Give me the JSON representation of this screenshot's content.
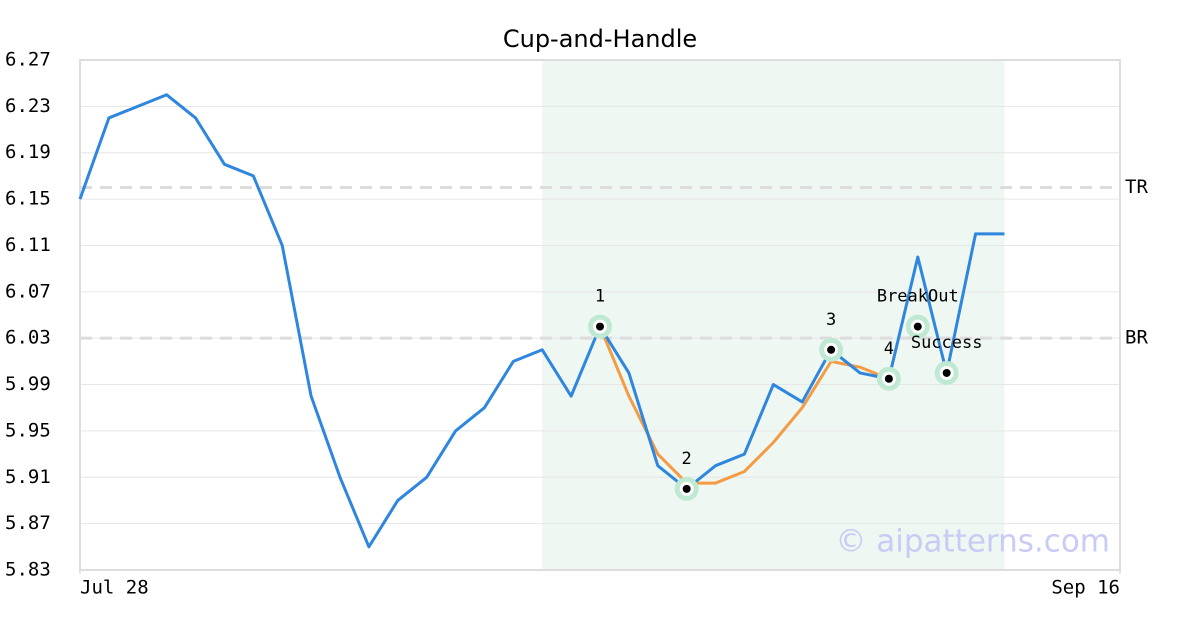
{
  "chart_data": {
    "type": "line",
    "title": "Cup-and-Handle",
    "x": [
      0,
      1,
      2,
      3,
      4,
      5,
      6,
      7,
      8,
      9,
      10,
      11,
      12,
      13,
      14,
      15,
      16,
      17,
      18,
      19,
      20,
      21,
      22,
      23,
      24,
      25,
      26,
      27,
      28,
      29,
      30,
      31,
      32
    ],
    "xlim": [
      0,
      36
    ],
    "xticks": [
      {
        "value": 0,
        "label": "Jul 28"
      },
      {
        "value": 36,
        "label": "Sep 16"
      }
    ],
    "ylim": [
      5.83,
      6.27
    ],
    "yticks": [
      5.83,
      5.87,
      5.91,
      5.95,
      5.99,
      6.03,
      6.07,
      6.11,
      6.15,
      6.19,
      6.23,
      6.27
    ],
    "grid": true,
    "series": [
      {
        "color": "#2e86de",
        "values": [
          6.15,
          6.22,
          6.23,
          6.24,
          6.22,
          6.18,
          6.17,
          6.11,
          5.98,
          5.91,
          5.85,
          5.89,
          5.91,
          5.95,
          5.97,
          6.01,
          6.02,
          5.98,
          6.04,
          6.0,
          5.92,
          5.9,
          5.92,
          5.93,
          5.99,
          5.975,
          6.02,
          6.0,
          5.995,
          6.1,
          6.0,
          6.12,
          6.12
        ]
      },
      {
        "color": "#f39c45",
        "values": [
          null,
          null,
          null,
          null,
          null,
          null,
          null,
          null,
          null,
          null,
          null,
          null,
          null,
          null,
          null,
          null,
          null,
          null,
          6.04,
          5.98,
          5.93,
          5.905,
          5.905,
          5.915,
          5.94,
          5.97,
          6.01,
          6.005,
          5.995,
          null,
          null,
          null,
          null
        ]
      }
    ],
    "highlight": [
      16,
      32
    ],
    "highlight_color": "#eef7f2",
    "levels": [
      {
        "label": "TR",
        "value": 6.16
      },
      {
        "label": "BR",
        "value": 6.03
      }
    ],
    "points": [
      {
        "label": "1",
        "x": 18,
        "y": 6.04
      },
      {
        "label": "2",
        "x": 21,
        "y": 5.9
      },
      {
        "label": "3",
        "x": 26,
        "y": 6.02
      },
      {
        "label": "4",
        "x": 28,
        "y": 5.995
      },
      {
        "label": "BreakOut",
        "x": 29,
        "y": 6.04
      },
      {
        "label": "Success",
        "x": 30,
        "y": 6.0
      }
    ],
    "watermark": "© aipatterns.com"
  }
}
